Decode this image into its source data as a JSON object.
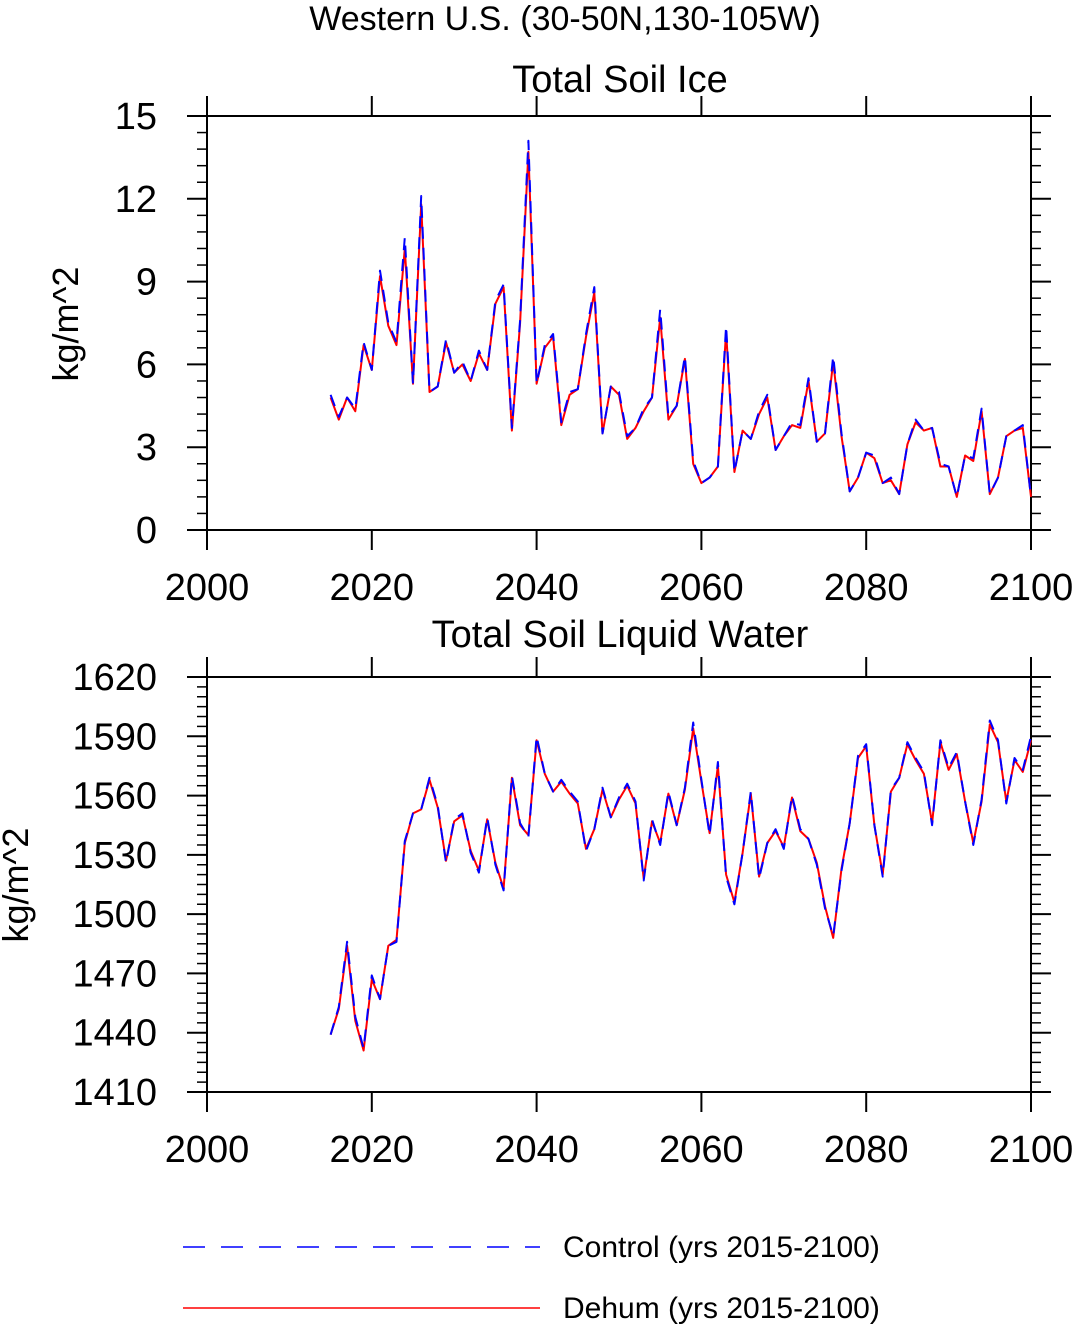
{
  "page_title": "Western U.S. (30-50N,130-105W)",
  "legend": {
    "items": [
      {
        "label": "Control (yrs 2015-2100)",
        "color": "#0000ff",
        "style": "dashed"
      },
      {
        "label": "Dehum (yrs 2015-2100)",
        "color": "#ff0000",
        "style": "solid"
      }
    ]
  },
  "chart_data": [
    {
      "type": "line",
      "title": "Total Soil Ice",
      "xlabel": "",
      "ylabel": "kg/m^2",
      "xlim": [
        2000,
        2100
      ],
      "ylim": [
        0,
        15
      ],
      "xticks": [
        2000,
        2020,
        2040,
        2060,
        2080,
        2100
      ],
      "yticks": [
        0,
        3,
        6,
        9,
        12,
        15
      ],
      "x_start": 2015,
      "series": [
        {
          "name": "Control (yrs 2015-2100)",
          "color": "#0000ff",
          "dash": true,
          "values": [
            4.9,
            4.1,
            4.8,
            4.4,
            6.8,
            5.8,
            9.4,
            7.5,
            6.8,
            10.6,
            5.3,
            12.1,
            5.0,
            5.2,
            6.9,
            5.7,
            6.1,
            5.4,
            6.5,
            5.8,
            8.3,
            8.9,
            3.7,
            7.6,
            14.1,
            5.3,
            6.7,
            7.1,
            3.9,
            5.0,
            5.1,
            7.1,
            8.8,
            3.5,
            5.2,
            5.0,
            3.4,
            3.7,
            4.4,
            4.8,
            8.0,
            4.1,
            4.5,
            6.3,
            2.5,
            1.7,
            1.9,
            2.3,
            7.4,
            2.1,
            3.6,
            3.3,
            4.3,
            4.9,
            2.9,
            3.4,
            3.9,
            3.8,
            5.5,
            3.2,
            3.5,
            6.3,
            3.5,
            1.4,
            1.9,
            2.8,
            2.7,
            1.7,
            1.9,
            1.3,
            3.1,
            4.0,
            3.6,
            3.7,
            2.4,
            2.3,
            1.2,
            2.7,
            2.6,
            4.4,
            1.3,
            1.9,
            3.4,
            3.6,
            3.8,
            1.2
          ]
        },
        {
          "name": "Dehum (yrs 2015-2100)",
          "color": "#ff0000",
          "dash": false,
          "values": [
            4.8,
            4.0,
            4.8,
            4.3,
            6.7,
            5.8,
            9.2,
            7.4,
            6.7,
            10.2,
            5.3,
            11.8,
            5.0,
            5.2,
            6.8,
            5.7,
            6.0,
            5.4,
            6.4,
            5.8,
            8.2,
            8.8,
            3.6,
            7.5,
            13.7,
            5.3,
            6.6,
            7.0,
            3.8,
            4.9,
            5.1,
            7.0,
            8.6,
            3.5,
            5.2,
            4.9,
            3.3,
            3.7,
            4.3,
            4.8,
            7.7,
            4.0,
            4.5,
            6.2,
            2.4,
            1.7,
            1.9,
            2.3,
            7.2,
            2.1,
            3.6,
            3.3,
            4.2,
            4.8,
            2.9,
            3.4,
            3.8,
            3.7,
            5.4,
            3.2,
            3.5,
            6.1,
            3.4,
            1.4,
            1.9,
            2.8,
            2.6,
            1.7,
            1.8,
            1.3,
            3.1,
            3.9,
            3.6,
            3.7,
            2.3,
            2.3,
            1.2,
            2.7,
            2.5,
            4.3,
            1.3,
            1.9,
            3.4,
            3.6,
            3.7,
            1.2
          ]
        }
      ]
    },
    {
      "type": "line",
      "title": "Total Soil Liquid Water",
      "xlabel": "",
      "ylabel": "kg/m^2",
      "xlim": [
        2000,
        2100
      ],
      "ylim": [
        1410,
        1620
      ],
      "xticks": [
        2000,
        2020,
        2040,
        2060,
        2080,
        2100
      ],
      "yticks": [
        1410,
        1440,
        1470,
        1500,
        1530,
        1560,
        1590,
        1620
      ],
      "x_start": 2015,
      "series": [
        {
          "name": "Control (yrs 2015-2100)",
          "color": "#0000ff",
          "dash": true,
          "values": [
            1439,
            1453,
            1486,
            1448,
            1432,
            1469,
            1457,
            1484,
            1486,
            1537,
            1551,
            1553,
            1569,
            1555,
            1526,
            1548,
            1551,
            1531,
            1521,
            1549,
            1525,
            1512,
            1570,
            1546,
            1539,
            1590,
            1571,
            1562,
            1568,
            1562,
            1557,
            1532,
            1543,
            1564,
            1549,
            1559,
            1566,
            1557,
            1517,
            1548,
            1535,
            1562,
            1545,
            1564,
            1597,
            1568,
            1540,
            1577,
            1519,
            1505,
            1531,
            1562,
            1518,
            1536,
            1543,
            1533,
            1560,
            1543,
            1538,
            1525,
            1503,
            1489,
            1522,
            1546,
            1580,
            1586,
            1545,
            1519,
            1563,
            1569,
            1587,
            1579,
            1572,
            1545,
            1588,
            1574,
            1582,
            1557,
            1535,
            1558,
            1598,
            1588,
            1556,
            1579,
            1573,
            1590
          ]
        },
        {
          "name": "Dehum (yrs 2015-2100)",
          "color": "#ff0000",
          "dash": false,
          "values": [
            1439,
            1452,
            1484,
            1446,
            1431,
            1467,
            1457,
            1484,
            1487,
            1536,
            1551,
            1553,
            1568,
            1554,
            1527,
            1547,
            1550,
            1532,
            1522,
            1548,
            1526,
            1513,
            1569,
            1545,
            1540,
            1588,
            1571,
            1562,
            1567,
            1561,
            1556,
            1533,
            1543,
            1563,
            1549,
            1558,
            1565,
            1556,
            1518,
            1547,
            1536,
            1561,
            1545,
            1563,
            1594,
            1567,
            1541,
            1575,
            1520,
            1506,
            1531,
            1561,
            1519,
            1536,
            1542,
            1534,
            1559,
            1542,
            1538,
            1526,
            1504,
            1488,
            1523,
            1546,
            1579,
            1585,
            1545,
            1520,
            1562,
            1569,
            1586,
            1578,
            1571,
            1546,
            1587,
            1573,
            1581,
            1557,
            1536,
            1557,
            1596,
            1587,
            1557,
            1578,
            1572,
            1588
          ]
        }
      ]
    }
  ]
}
